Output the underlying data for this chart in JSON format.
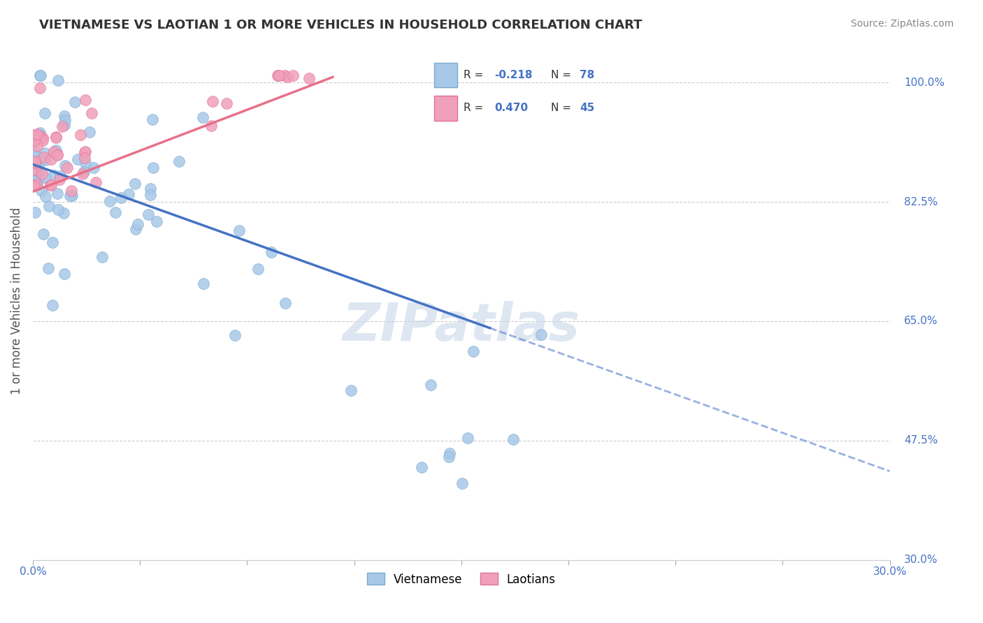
{
  "title": "VIETNAMESE VS LAOTIAN 1 OR MORE VEHICLES IN HOUSEHOLD CORRELATION CHART",
  "source": "Source: ZipAtlas.com",
  "ylabel": "1 or more Vehicles in Household",
  "yticks": [
    30.0,
    47.5,
    65.0,
    82.5,
    100.0
  ],
  "xlim": [
    0.0,
    30.0
  ],
  "ylim": [
    30.0,
    106.0
  ],
  "viet_R": -0.218,
  "viet_N": 78,
  "laot_R": 0.47,
  "laot_N": 45,
  "viet_color": "#a8c8e8",
  "laot_color": "#f0a0b8",
  "viet_edge_color": "#7aaad0",
  "laot_edge_color": "#e070a0",
  "viet_line_color": "#4472C4",
  "laot_line_color": "#E8708A",
  "watermark": "ZIPatlas",
  "watermark_color": "#c8d8e8",
  "legend_viet": "Vietnamese",
  "legend_laot": "Laotians"
}
